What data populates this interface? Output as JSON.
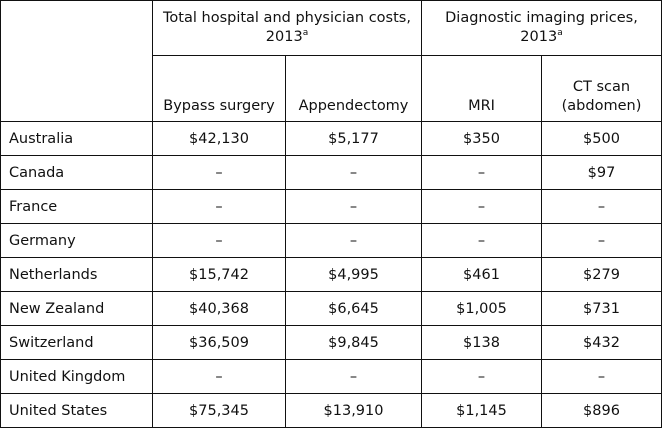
{
  "header": {
    "group1_title": "Total hospital and physician costs, 2013",
    "group1_sup": "a",
    "group2_title": "Diagnostic imaging prices, 2013",
    "group2_sup": "a",
    "columns": [
      "Bypass surgery",
      "Appendectomy",
      "MRI",
      "CT scan (abdomen)"
    ]
  },
  "rows": [
    {
      "country": "Australia",
      "values": [
        "$42,130",
        "$5,177",
        "$350",
        "$500"
      ]
    },
    {
      "country": "Canada",
      "values": [
        "–",
        "–",
        "–",
        "$97"
      ]
    },
    {
      "country": "France",
      "values": [
        "–",
        "–",
        "–",
        "–"
      ]
    },
    {
      "country": "Germany",
      "values": [
        "–",
        "–",
        "–",
        "–"
      ]
    },
    {
      "country": "Netherlands",
      "values": [
        "$15,742",
        "$4,995",
        "$461",
        "$279"
      ]
    },
    {
      "country": "New Zealand",
      "values": [
        "$40,368",
        "$6,645",
        "$1,005",
        "$731"
      ]
    },
    {
      "country": "Switzerland",
      "values": [
        "$36,509",
        "$9,845",
        "$138",
        "$432"
      ]
    },
    {
      "country": "United Kingdom",
      "values": [
        "–",
        "–",
        "–",
        "–"
      ]
    },
    {
      "country": "United States",
      "values": [
        "$75,345",
        "$13,910",
        "$1,145",
        "$896"
      ]
    }
  ]
}
